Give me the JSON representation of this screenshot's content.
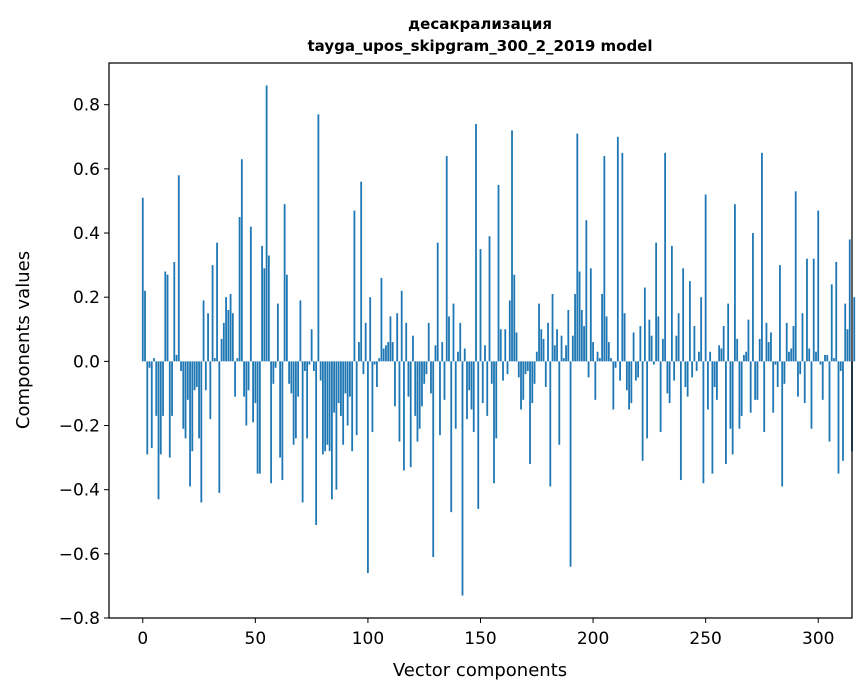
{
  "chart_data": {
    "type": "bar",
    "title": "десакрализация",
    "subtitle": "tayga_upos_skipgram_300_2_2019 model",
    "xlabel": "Vector components",
    "ylabel": "Components values",
    "xlim": [
      -15,
      315
    ],
    "ylim": [
      -0.8,
      0.93
    ],
    "x_ticks": [
      0,
      50,
      100,
      150,
      200,
      250,
      300
    ],
    "y_ticks": [
      -0.8,
      -0.6,
      -0.4,
      -0.2,
      0.0,
      0.2,
      0.4,
      0.6,
      0.8
    ],
    "x_tick_labels": [
      "0",
      "50",
      "100",
      "150",
      "200",
      "250",
      "300"
    ],
    "y_tick_labels": [
      "−0.8",
      "−0.6",
      "−0.4",
      "−0.2",
      "0.0",
      "0.2",
      "0.4",
      "0.6",
      "0.8"
    ],
    "bar_color": "#1f77b4",
    "grid": false,
    "values": [
      0.51,
      0.22,
      -0.29,
      -0.02,
      -0.27,
      0.01,
      -0.17,
      -0.43,
      -0.29,
      -0.17,
      0.28,
      0.27,
      -0.3,
      -0.17,
      0.31,
      0.02,
      0.58,
      -0.03,
      -0.21,
      -0.24,
      -0.12,
      -0.39,
      -0.28,
      -0.09,
      -0.08,
      -0.24,
      -0.44,
      0.19,
      -0.09,
      0.15,
      -0.18,
      0.3,
      0.01,
      0.37,
      -0.41,
      0.07,
      0.12,
      0.2,
      0.16,
      0.21,
      0.15,
      -0.11,
      0.01,
      0.45,
      0.63,
      -0.11,
      -0.2,
      -0.09,
      0.42,
      -0.19,
      -0.13,
      -0.35,
      -0.35,
      0.36,
      0.29,
      0.86,
      0.33,
      -0.38,
      -0.07,
      -0.02,
      0.18,
      -0.3,
      -0.37,
      0.49,
      0.27,
      -0.07,
      -0.1,
      -0.26,
      -0.24,
      -0.11,
      0.19,
      -0.44,
      -0.03,
      -0.24,
      -0.01,
      0.1,
      -0.03,
      -0.51,
      0.77,
      -0.06,
      -0.29,
      -0.28,
      -0.26,
      -0.28,
      -0.43,
      -0.16,
      -0.4,
      -0.13,
      -0.17,
      -0.26,
      -0.1,
      -0.2,
      -0.11,
      -0.28,
      0.47,
      -0.23,
      0.06,
      0.56,
      -0.04,
      0.12,
      -0.66,
      0.2,
      -0.22,
      -0.01,
      -0.08,
      0.01,
      0.26,
      0.04,
      0.05,
      0.06,
      0.14,
      0.06,
      -0.14,
      0.15,
      -0.25,
      0.22,
      -0.34,
      0.12,
      -0.11,
      -0.33,
      0.08,
      -0.17,
      -0.25,
      -0.21,
      -0.14,
      -0.07,
      -0.04,
      0.12,
      -0.1,
      -0.61,
      0.05,
      0.37,
      -0.23,
      0.06,
      -0.12,
      0.64,
      0.14,
      -0.47,
      0.18,
      -0.21,
      0.03,
      0.12,
      -0.73,
      0.04,
      -0.18,
      -0.09,
      -0.15,
      -0.22,
      0.74,
      -0.46,
      0.35,
      -0.13,
      0.05,
      -0.17,
      0.39,
      -0.07,
      -0.38,
      -0.24,
      0.55,
      0.1,
      -0.06,
      0.1,
      -0.04,
      0.19,
      0.72,
      0.27,
      0.09,
      -0.05,
      -0.15,
      -0.12,
      -0.04,
      -0.03,
      -0.32,
      -0.13,
      -0.07,
      0.03,
      0.18,
      0.1,
      0.07,
      -0.08,
      0.12,
      -0.39,
      0.21,
      0.05,
      0.1,
      -0.26,
      0.08,
      0.01,
      0.05,
      0.16,
      -0.64,
      0.08,
      0.21,
      0.71,
      0.28,
      0.16,
      0.11,
      0.44,
      -0.05,
      0.29,
      0.06,
      -0.12,
      0.03,
      0.01,
      0.21,
      0.64,
      0.14,
      0.06,
      0.01,
      -0.15,
      -0.02,
      0.7,
      -0.06,
      0.65,
      0.15,
      -0.09,
      -0.15,
      -0.13,
      0.09,
      -0.06,
      -0.05,
      0.11,
      -0.31,
      0.23,
      -0.24,
      0.13,
      0.08,
      -0.01,
      0.37,
      0.14,
      -0.22,
      0.07,
      0.65,
      -0.1,
      -0.13,
      0.36,
      -0.06,
      0.08,
      0.15,
      -0.37,
      0.29,
      -0.08,
      -0.11,
      0.25,
      -0.05,
      0.11,
      -0.03,
      0.03,
      0.2,
      -0.38,
      0.52,
      -0.15,
      0.03,
      -0.35,
      -0.08,
      -0.12,
      0.05,
      0.04,
      0.11,
      -0.32,
      0.18,
      -0.21,
      -0.29,
      0.49,
      0.07,
      -0.21,
      -0.17,
      0.02,
      0.03,
      0.13,
      -0.16,
      0.4,
      -0.12,
      -0.12,
      0.07,
      0.65,
      -0.22,
      0.12,
      0.06,
      0.09,
      -0.16,
      -0.01,
      -0.08,
      0.3,
      -0.39,
      -0.07,
      0.12,
      0.03,
      0.04,
      0.11,
      0.53,
      -0.11,
      -0.04,
      0.15,
      -0.13,
      0.32,
      0.04,
      -0.21,
      0.32,
      0.03,
      0.47,
      -0.01,
      -0.12,
      0.02,
      0.02,
      -0.25,
      0.24,
      0.01,
      0.31,
      -0.35,
      -0.03,
      -0.31,
      0.18,
      0.1,
      0.38,
      -0.28,
      0.2
    ]
  }
}
